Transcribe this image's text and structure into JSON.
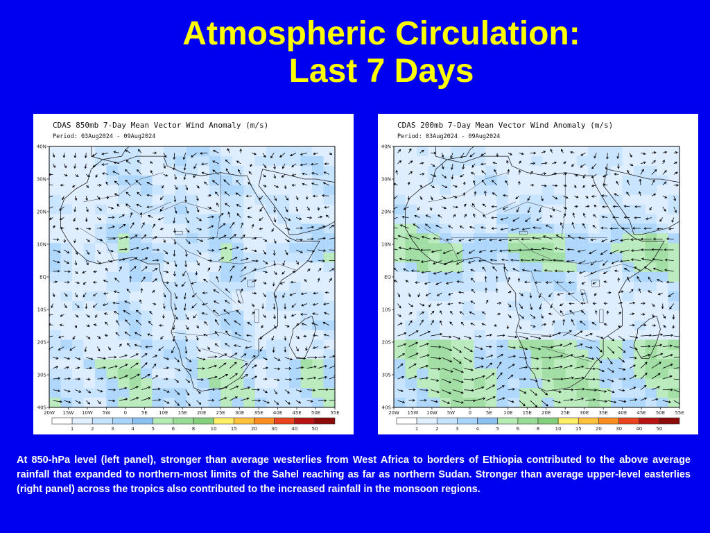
{
  "slide": {
    "title_line1": "Atmospheric Circulation:",
    "title_line2": "Last 7 Days"
  },
  "panels": [
    {
      "title": "CDAS 850mb 7-Day Mean Vector Wind Anomaly (m/s)",
      "period": "Period: 03Aug2024 - 09Aug2024",
      "level": "850mb",
      "pattern": "westerly anomalies across the Sahel and tropics"
    },
    {
      "title": "CDAS 200mb 7-Day Mean Vector Wind Anomaly (m/s)",
      "period": "Period: 03Aug2024 - 09Aug2024",
      "level": "200mb",
      "pattern": "easterly anomalies across the tropics"
    }
  ],
  "map": {
    "lat_labels": [
      "40N",
      "30N",
      "20N",
      "10N",
      "EQ",
      "10S",
      "20S",
      "30S",
      "40S"
    ],
    "lon_labels": [
      "20W",
      "15W",
      "10W",
      "5W",
      "0",
      "5E",
      "10E",
      "15E",
      "20E",
      "25E",
      "30E",
      "35E",
      "40E",
      "45E",
      "50E",
      "55E"
    ]
  },
  "colorbar": {
    "labels": [
      "1",
      "2",
      "3",
      "4",
      "5",
      "6",
      "8",
      "10",
      "15",
      "20",
      "30",
      "40",
      "50"
    ],
    "colors": [
      "#ffffff",
      "#e1efff",
      "#c6e3ff",
      "#a9d4fb",
      "#8cc2f2",
      "#b6ebb4",
      "#99dc95",
      "#84cf7e",
      "#ffee66",
      "#ffc03c",
      "#ff8c1e",
      "#e8431c",
      "#b81414",
      "#8c0a0a"
    ]
  },
  "caption": "At 850-hPa level (left panel), stronger than average westerlies from West Africa to borders of Ethiopia contributed to the above average rainfall that expanded to northern-most limits of the Sahel reaching as far as northern Sudan. Stronger than average upper-level easterlies (right panel) across the tropics also contributed to the increased rainfall in the monsoon regions."
}
